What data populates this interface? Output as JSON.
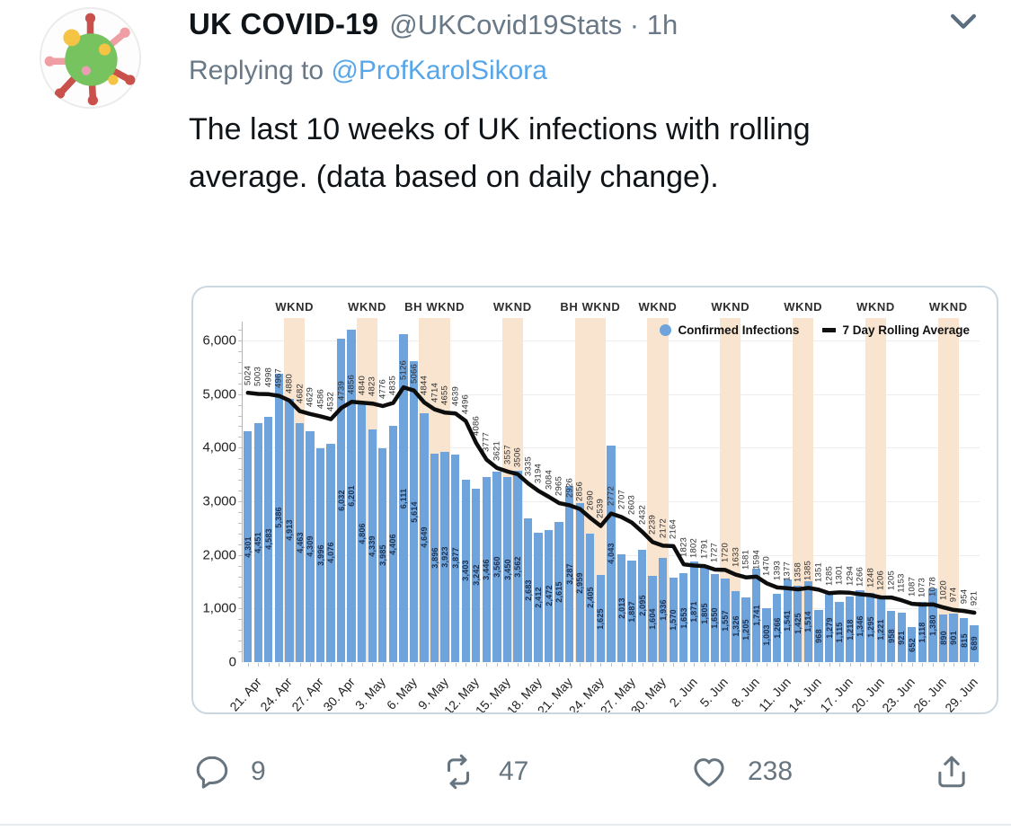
{
  "tweet": {
    "display_name": "UK COVID-19",
    "handle_time": "@UKCovid19Stats · 1h",
    "replying_prefix": "Replying to ",
    "replying_handle": "@ProfKarolSikora",
    "body": "The last 10 weeks of UK infections with rolling average. (data based on daily change).",
    "avatar_icon": "virus-emoji",
    "actions": {
      "replies": "9",
      "retweets": "47",
      "likes": "238"
    }
  },
  "colors": {
    "bar": "#6fa3dc",
    "weekend_band": "#f8e4cf",
    "rolling_line": "#0d0d0d",
    "link_blue": "#57a6ea",
    "muted_gray": "#66757f",
    "card_border": "#c9d7e0"
  },
  "chart_data": {
    "type": "bar",
    "title": "",
    "xlabel": "",
    "ylabel": "",
    "ylim": [
      0,
      6400
    ],
    "grid": true,
    "legend_position": "top-right",
    "y_tick_labels": [
      "0",
      "1,000",
      "2,000",
      "3,000",
      "4,000",
      "5,000",
      "6,000"
    ],
    "y_tick_values": [
      0,
      1000,
      2000,
      3000,
      4000,
      5000,
      6000
    ],
    "x_tick_labels": [
      "21. Apr",
      "24. Apr",
      "27. Apr",
      "30. Apr",
      "3. May",
      "6. May",
      "9. May",
      "12. May",
      "15. May",
      "18. May",
      "21. May",
      "24. May",
      "27. May",
      "30. May",
      "2. Jun",
      "5. Jun",
      "8. Jun",
      "11. Jun",
      "14. Jun",
      "17. Jun",
      "20. Jun",
      "23. Jun",
      "26. Jun",
      "29. Jun"
    ],
    "x_tick_every": 3,
    "series": [
      {
        "name": "Confirmed Infections",
        "type": "bar",
        "color": "#6fa3dc",
        "values": [
          4301,
          4451,
          4583,
          5386,
          4913,
          4463,
          4309,
          3996,
          4076,
          6032,
          6201,
          4806,
          4339,
          3985,
          4406,
          6111,
          5614,
          4649,
          3896,
          3923,
          3877,
          3403,
          3242,
          3446,
          3560,
          3450,
          3562,
          2683,
          2412,
          2472,
          2615,
          3287,
          2959,
          2405,
          1625,
          4043,
          2013,
          1887,
          2095,
          1604,
          1936,
          1570,
          1653,
          1871,
          1805,
          1650,
          1557,
          1326,
          1205,
          1741,
          1003,
          1266,
          1541,
          1425,
          1514,
          968,
          1279,
          1115,
          1218,
          1346,
          1295,
          1221,
          958,
          921,
          652,
          1118,
          1380,
          890,
          901,
          815,
          689
        ]
      },
      {
        "name": "7 Day Rolling Average",
        "type": "line",
        "color": "#0d0d0d",
        "values": [
          5024,
          5003,
          4998,
          4967,
          4880,
          4682,
          4629,
          4586,
          4532,
          4739,
          4856,
          4840,
          4823,
          4776,
          4835,
          5126,
          5066,
          4844,
          4714,
          4655,
          4639,
          4496,
          4086,
          3777,
          3621,
          3557,
          3506,
          3335,
          3194,
          3084,
          2965,
          2926,
          2856,
          2690,
          2539,
          2772,
          2707,
          2603,
          2432,
          2239,
          2172,
          2164,
          1823,
          1802,
          1791,
          1727,
          1720,
          1633,
          1581,
          1594,
          1470,
          1393,
          1377,
          1358,
          1385,
          1351,
          1285,
          1301,
          1294,
          1266,
          1248,
          1206,
          1205,
          1153,
          1087,
          1073,
          1078,
          1020,
          974,
          954,
          921
        ]
      }
    ],
    "weekend_bands": [
      {
        "label": "WKND",
        "start_index": 4,
        "end_index": 5
      },
      {
        "label": "WKND",
        "start_index": 11,
        "end_index": 12
      },
      {
        "label": "BH WKND",
        "start_index": 17,
        "end_index": 19
      },
      {
        "label": "WKND",
        "start_index": 25,
        "end_index": 26
      },
      {
        "label": "BH WKND",
        "start_index": 32,
        "end_index": 34
      },
      {
        "label": "WKND",
        "start_index": 39,
        "end_index": 40
      },
      {
        "label": "WKND",
        "start_index": 46,
        "end_index": 47
      },
      {
        "label": "WKND",
        "start_index": 53,
        "end_index": 54
      },
      {
        "label": "WKND",
        "start_index": 60,
        "end_index": 61
      },
      {
        "label": "WKND",
        "start_index": 67,
        "end_index": 68
      }
    ]
  }
}
